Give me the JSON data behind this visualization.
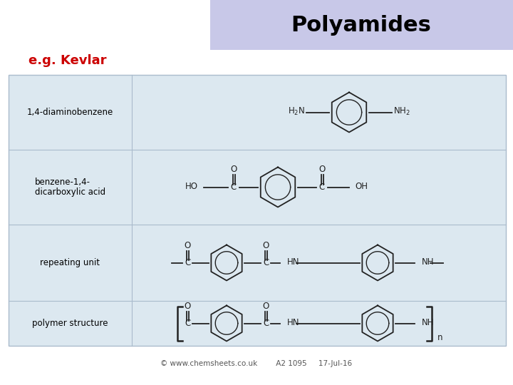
{
  "title": "Polyamides",
  "subtitle": "e.g. Kevlar",
  "title_bg": "#c8c8e8",
  "subtitle_color": "#cc0000",
  "table_bg": "#dce8f0",
  "table_border": "#aabbcc",
  "row_labels": [
    "1,4-diaminobenzene",
    "benzene-1,4-\ndicarboxylic acid",
    "repeating unit",
    "polymer structure"
  ],
  "footer": "© www.chemsheets.co.uk        A2 1095     17-Jul-16",
  "bg_color": "#ffffff",
  "line_color": "#222222"
}
